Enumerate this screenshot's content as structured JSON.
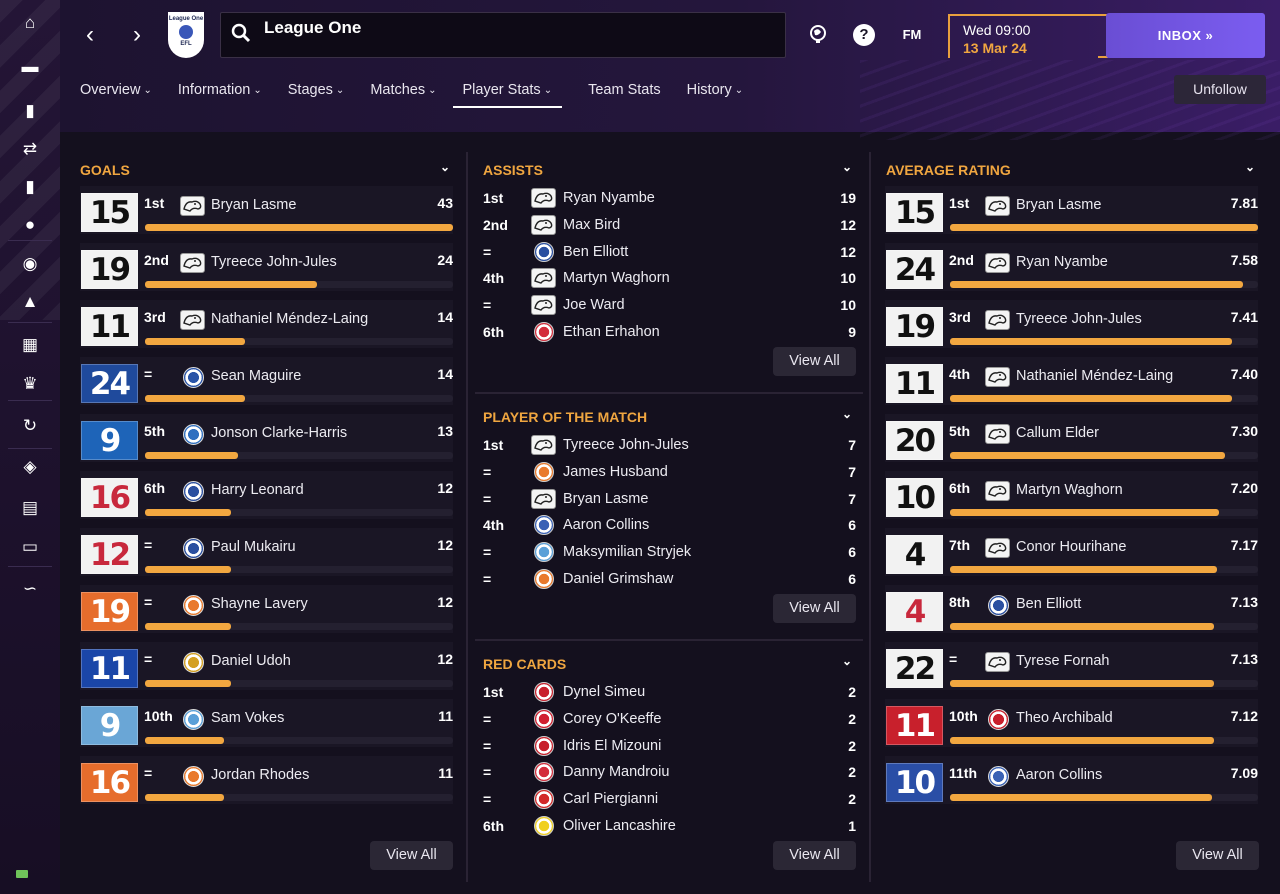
{
  "header": {
    "search_text": "League One",
    "badge_top": "League One",
    "badge_bottom": "EFL",
    "date_line1": "Wed 09:00",
    "date_line2": "13 Mar 24",
    "inbox_label": "INBOX",
    "fm_label": "FM",
    "help_label": "?",
    "unfollow_label": "Unfollow"
  },
  "tabs": [
    "Overview",
    "Information",
    "Stages",
    "Matches",
    "Player Stats",
    "Team Stats",
    "History"
  ],
  "tabs_with_dropdown": [
    true,
    true,
    true,
    true,
    true,
    false,
    true
  ],
  "active_tab": "Player Stats",
  "sidebar": {
    "icons": [
      "home-icon",
      "inbox-icon",
      "squad-icon",
      "transfers-icon",
      "tactics-icon",
      "data-hub-icon",
      "staff-icon",
      "training-icon",
      "schedule-icon",
      "competitions-icon",
      "scouting-icon",
      "club-vision-icon",
      "club-info-icon",
      "finances-icon",
      "dev-centre-icon"
    ]
  },
  "goals": {
    "title": "GOALS",
    "view_all": "View All",
    "max": 43,
    "rows": [
      {
        "num": "15",
        "rank": "1st",
        "name": "Bryan Lasme",
        "value": "43",
        "v": 43,
        "crest": "derby",
        "kit_bg": "#f2f2f2",
        "kit_fg": "#111111"
      },
      {
        "num": "19",
        "rank": "2nd",
        "name": "Tyreece John-Jules",
        "value": "24",
        "v": 24,
        "crest": "derby",
        "kit_bg": "#f2f2f2",
        "kit_fg": "#111111"
      },
      {
        "num": "11",
        "rank": "3rd",
        "name": "Nathaniel Méndez-Laing",
        "value": "14",
        "v": 14,
        "crest": "derby",
        "kit_bg": "#f2f2f2",
        "kit_fg": "#111111"
      },
      {
        "num": "24",
        "rank": "=",
        "name": "Sean Maguire",
        "value": "14",
        "v": 14,
        "crest": "carlisle",
        "kit_bg": "#1f4a9c",
        "kit_fg": "#ffffff"
      },
      {
        "num": "9",
        "rank": "5th",
        "name": "Jonson Clarke-Harris",
        "value": "13",
        "v": 13,
        "crest": "peterborough",
        "kit_bg": "#1e64b8",
        "kit_fg": "#ffffff"
      },
      {
        "num": "16",
        "rank": "6th",
        "name": "Harry Leonard",
        "value": "12",
        "v": 12,
        "crest": "reading",
        "kit_bg": "#f2f2f2",
        "kit_fg": "#c8283c"
      },
      {
        "num": "12",
        "rank": "=",
        "name": "Paul Mukairu",
        "value": "12",
        "v": 12,
        "crest": "reading",
        "kit_bg": "#f2f2f2",
        "kit_fg": "#c8283c"
      },
      {
        "num": "19",
        "rank": "=",
        "name": "Shayne Lavery",
        "value": "12",
        "v": 12,
        "crest": "blackpool",
        "kit_bg": "#e66d2c",
        "kit_fg": "#ffffff"
      },
      {
        "num": "11",
        "rank": "=",
        "name": "Daniel Udoh",
        "value": "12",
        "v": 12,
        "crest": "shrewsbury",
        "kit_bg": "#1a46a8",
        "kit_fg": "#ffffff"
      },
      {
        "num": "9",
        "rank": "10th",
        "name": "Sam Vokes",
        "value": "11",
        "v": 11,
        "crest": "wycombe",
        "kit_bg": "#6aa6d6",
        "kit_fg": "#ffffff"
      },
      {
        "num": "16",
        "rank": "=",
        "name": "Jordan Rhodes",
        "value": "11",
        "v": 11,
        "crest": "blackpool",
        "kit_bg": "#e66d2c",
        "kit_fg": "#ffffff"
      }
    ]
  },
  "assists": {
    "title": "ASSISTS",
    "view_all": "View All",
    "rows": [
      {
        "rank": "1st",
        "name": "Ryan Nyambe",
        "value": "19",
        "crest": "derby"
      },
      {
        "rank": "2nd",
        "name": "Max Bird",
        "value": "12",
        "crest": "derby"
      },
      {
        "rank": "=",
        "name": "Ben Elliott",
        "value": "12",
        "crest": "reading"
      },
      {
        "rank": "4th",
        "name": "Martyn Waghorn",
        "value": "10",
        "crest": "derby"
      },
      {
        "rank": "=",
        "name": "Joe Ward",
        "value": "10",
        "crest": "derby"
      },
      {
        "rank": "6th",
        "name": "Ethan Erhahon",
        "value": "9",
        "crest": "lincoln"
      }
    ]
  },
  "potm": {
    "title": "PLAYER OF THE MATCH",
    "view_all": "View All",
    "rows": [
      {
        "rank": "1st",
        "name": "Tyreece John-Jules",
        "value": "7",
        "crest": "derby"
      },
      {
        "rank": "=",
        "name": "James Husband",
        "value": "7",
        "crest": "blackpool"
      },
      {
        "rank": "=",
        "name": "Bryan Lasme",
        "value": "7",
        "crest": "derby"
      },
      {
        "rank": "4th",
        "name": "Aaron Collins",
        "value": "6",
        "crest": "bristol"
      },
      {
        "rank": "=",
        "name": "Maksymilian Stryjek",
        "value": "6",
        "crest": "wycombe"
      },
      {
        "rank": "=",
        "name": "Daniel Grimshaw",
        "value": "6",
        "crest": "blackpool"
      }
    ]
  },
  "red_cards": {
    "title": "RED CARDS",
    "view_all": "View All",
    "rows": [
      {
        "rank": "1st",
        "name": "Dynel Simeu",
        "value": "2",
        "crest": "orient"
      },
      {
        "rank": "=",
        "name": "Corey O'Keeffe",
        "value": "2",
        "crest": "barnsley"
      },
      {
        "rank": "=",
        "name": "Idris El Mizouni",
        "value": "2",
        "crest": "orient"
      },
      {
        "rank": "=",
        "name": "Danny Mandroiu",
        "value": "2",
        "crest": "lincoln"
      },
      {
        "rank": "=",
        "name": "Carl Piergianni",
        "value": "2",
        "crest": "stevenage"
      },
      {
        "rank": "6th",
        "name": "Oliver Lancashire",
        "value": "1",
        "crest": "burton"
      }
    ]
  },
  "avg_rating": {
    "title": "AVERAGE RATING",
    "view_all": "View All",
    "rows": [
      {
        "num": "15",
        "rank": "1st",
        "name": "Bryan Lasme",
        "value": "7.81",
        "v": 7.81,
        "crest": "derby",
        "kit_bg": "#f2f2f2",
        "kit_fg": "#111111"
      },
      {
        "num": "24",
        "rank": "2nd",
        "name": "Ryan Nyambe",
        "value": "7.58",
        "v": 7.58,
        "crest": "derby",
        "kit_bg": "#f2f2f2",
        "kit_fg": "#111111"
      },
      {
        "num": "19",
        "rank": "3rd",
        "name": "Tyreece John-Jules",
        "value": "7.41",
        "v": 7.41,
        "crest": "derby",
        "kit_bg": "#f2f2f2",
        "kit_fg": "#111111"
      },
      {
        "num": "11",
        "rank": "4th",
        "name": "Nathaniel Méndez-Laing",
        "value": "7.40",
        "v": 7.4,
        "crest": "derby",
        "kit_bg": "#f2f2f2",
        "kit_fg": "#111111"
      },
      {
        "num": "20",
        "rank": "5th",
        "name": "Callum Elder",
        "value": "7.30",
        "v": 7.3,
        "crest": "derby",
        "kit_bg": "#f2f2f2",
        "kit_fg": "#111111"
      },
      {
        "num": "10",
        "rank": "6th",
        "name": "Martyn Waghorn",
        "value": "7.20",
        "v": 7.2,
        "crest": "derby",
        "kit_bg": "#f2f2f2",
        "kit_fg": "#111111"
      },
      {
        "num": "4",
        "rank": "7th",
        "name": "Conor Hourihane",
        "value": "7.17",
        "v": 7.17,
        "crest": "derby",
        "kit_bg": "#f2f2f2",
        "kit_fg": "#111111"
      },
      {
        "num": "4",
        "rank": "8th",
        "name": "Ben Elliott",
        "value": "7.13",
        "v": 7.13,
        "crest": "reading",
        "kit_bg": "#f2f2f2",
        "kit_fg": "#c8283c"
      },
      {
        "num": "22",
        "rank": "=",
        "name": "Tyrese Fornah",
        "value": "7.13",
        "v": 7.13,
        "crest": "derby",
        "kit_bg": "#f2f2f2",
        "kit_fg": "#111111"
      },
      {
        "num": "11",
        "rank": "10th",
        "name": "Theo Archibald",
        "value": "7.12",
        "v": 7.12,
        "crest": "orient",
        "kit_bg": "#c8202c",
        "kit_fg": "#ffffff"
      },
      {
        "num": "10",
        "rank": "11th",
        "name": "Aaron Collins",
        "value": "7.09",
        "v": 7.09,
        "crest": "bristol",
        "kit_bg": "#2a4ea6",
        "kit_fg": "#ffffff"
      }
    ]
  },
  "colors": {
    "accent": "#f0a640",
    "inbox": "#7356e6",
    "background": "#14101e",
    "row": "#1a1625"
  },
  "crest_colors": {
    "carlisle": "#2a54a8",
    "peterborough": "#2f6fc0",
    "reading": "#2a4fa0",
    "blackpool": "#e97a2d",
    "shrewsbury": "#d4a020",
    "wycombe": "#5aa0d8",
    "lincoln": "#d32d3c",
    "bristol": "#3a62b5",
    "orient": "#c8202c",
    "barnsley": "#d12030",
    "stevenage": "#d22a2a",
    "burton": "#f0d020"
  }
}
